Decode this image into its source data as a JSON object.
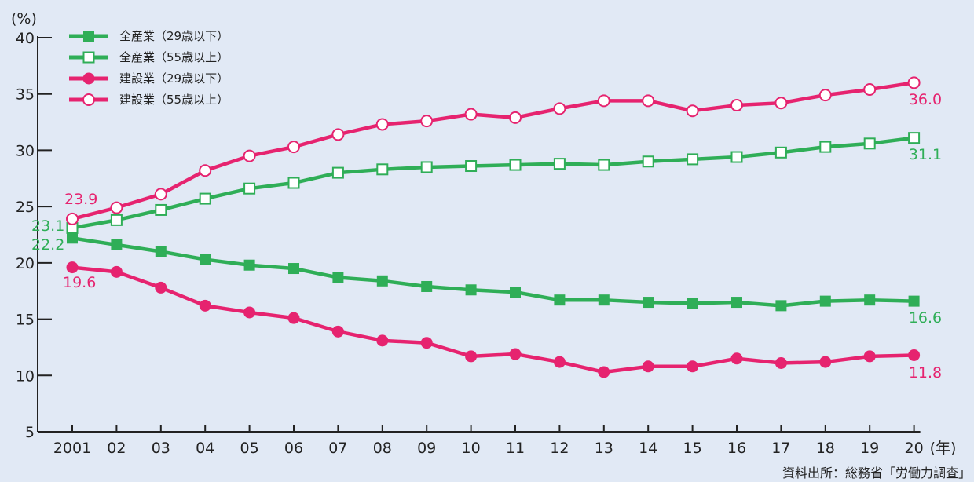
{
  "chart_data": {
    "type": "line",
    "ylabel": "(%)",
    "xunit": "(年)",
    "ylim": [
      5,
      40
    ],
    "yticks": [
      5,
      10,
      15,
      20,
      25,
      30,
      35,
      40
    ],
    "categories": [
      "2001",
      "02",
      "03",
      "04",
      "05",
      "06",
      "07",
      "08",
      "09",
      "10",
      "11",
      "12",
      "13",
      "14",
      "15",
      "16",
      "17",
      "18",
      "19",
      "20"
    ],
    "series": [
      {
        "name": "全産業（29歳以下）",
        "color": "#2fae57",
        "marker": "square-filled",
        "values": [
          22.2,
          21.6,
          21.0,
          20.3,
          19.8,
          19.5,
          18.7,
          18.4,
          17.9,
          17.6,
          17.4,
          16.7,
          16.7,
          16.5,
          16.4,
          16.5,
          16.2,
          16.6,
          16.7,
          16.6
        ]
      },
      {
        "name": "全産業（55歳以上）",
        "color": "#2fae57",
        "marker": "square-open",
        "values": [
          23.1,
          23.8,
          24.7,
          25.7,
          26.6,
          27.1,
          28.0,
          28.3,
          28.5,
          28.6,
          28.7,
          28.8,
          28.7,
          29.0,
          29.2,
          29.4,
          29.8,
          30.3,
          30.6,
          31.1
        ]
      },
      {
        "name": "建設業（29歳以下）",
        "color": "#e6236f",
        "marker": "circle-filled",
        "values": [
          19.6,
          19.2,
          17.8,
          16.2,
          15.6,
          15.1,
          13.9,
          13.1,
          12.9,
          11.7,
          11.9,
          11.2,
          10.3,
          10.8,
          10.8,
          11.5,
          11.1,
          11.2,
          11.7,
          11.8
        ]
      },
      {
        "name": "建設業（55歳以上）",
        "color": "#e6236f",
        "marker": "circle-open",
        "values": [
          23.9,
          24.9,
          26.1,
          28.2,
          29.5,
          30.3,
          31.4,
          32.3,
          32.6,
          33.2,
          32.9,
          33.7,
          34.4,
          34.4,
          33.5,
          34.0,
          34.2,
          34.9,
          35.4,
          36.0
        ]
      }
    ],
    "annotations": [
      {
        "text": "23.9",
        "color": "#e6236f"
      },
      {
        "text": "23.1",
        "color": "#2fae57"
      },
      {
        "text": "22.2",
        "color": "#2fae57"
      },
      {
        "text": "19.6",
        "color": "#e6236f"
      },
      {
        "text": "36.0",
        "color": "#e6236f"
      },
      {
        "text": "31.1",
        "color": "#2fae57"
      },
      {
        "text": "16.6",
        "color": "#2fae57"
      },
      {
        "text": "11.8",
        "color": "#e6236f"
      }
    ],
    "legend_position": "top-left",
    "grid": false
  },
  "source": "資料出所：総務省「労働力調査」"
}
